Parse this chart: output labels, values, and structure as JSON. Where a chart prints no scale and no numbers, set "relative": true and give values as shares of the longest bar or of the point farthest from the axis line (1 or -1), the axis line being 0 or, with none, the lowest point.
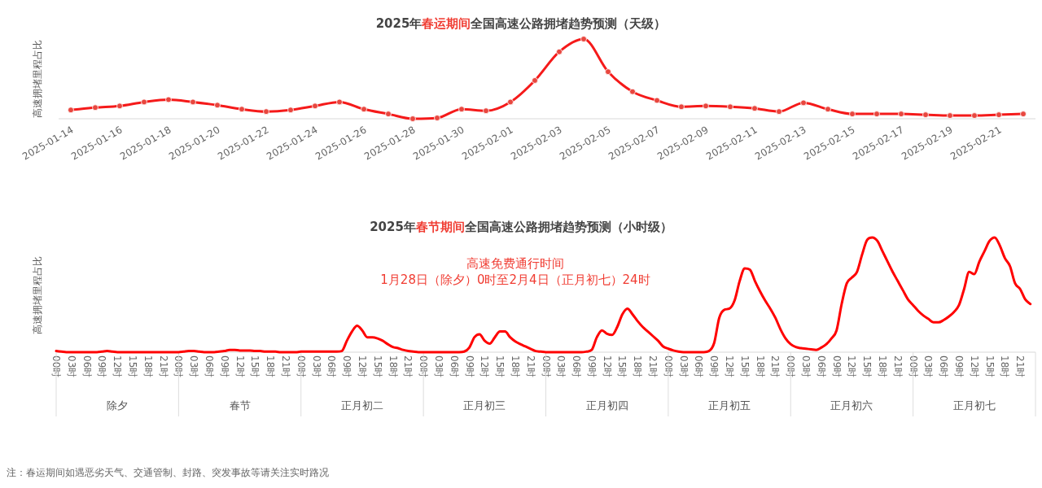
{
  "chart_data": [
    {
      "type": "line",
      "title": "2025年**春运期间**全国高速公路拥堵趋势预测（天级）",
      "ylabel": "高速拥堵里程占比",
      "relative": true,
      "marker": "circle",
      "line_style": "solid",
      "categories": [
        "2025-01-14",
        null,
        "2025-01-16",
        null,
        "2025-01-18",
        null,
        "2025-01-20",
        null,
        "2025-01-22",
        null,
        "2025-01-24",
        null,
        "2025-01-26",
        null,
        "2025-01-28",
        null,
        "2025-01-30",
        null,
        "2025-02-01",
        null,
        "2025-02-03",
        null,
        "2025-02-05",
        null,
        "2025-02-07",
        null,
        "2025-02-09",
        null,
        "2025-02-11",
        null,
        "2025-02-13",
        null,
        "2025-02-15",
        null,
        "2025-02-17",
        null,
        "2025-02-19",
        null,
        "2025-02-21",
        null
      ],
      "series": [
        {
          "color": "#f51a1a",
          "values": [
            0.11,
            0.14,
            0.16,
            0.21,
            0.24,
            0.21,
            0.17,
            0.12,
            0.09,
            0.11,
            0.16,
            0.21,
            0.12,
            0.06,
            0.0,
            0.01,
            0.12,
            0.1,
            0.21,
            0.48,
            0.84,
            1.0,
            0.59,
            0.34,
            0.23,
            0.15,
            0.16,
            0.15,
            0.13,
            0.09,
            0.2,
            0.12,
            0.06,
            0.06,
            0.06,
            0.05,
            0.04,
            0.04,
            0.05,
            0.06
          ]
        }
      ]
    },
    {
      "type": "line",
      "title": "2025年**春节期间**全国高速公路拥堵趋势预测（小时级）",
      "ylabel": "高速拥堵里程占比",
      "relative": true,
      "marker": "none",
      "line_style": "solid",
      "annotations": [
        "高速免费通行时间",
        "1月28日（除夕）0时至2月4日（正月初七）24时",
        "除夕",
        "春节",
        "正月初二",
        "正月初三",
        "正月初四",
        "正月初五",
        "正月初六",
        "正月初七",
        "注：春运期间如遇恶劣天气、交通管制、封路、突发事故等请关注实时路况"
      ],
      "categories": [
        "00时",
        null,
        null,
        "03时",
        null,
        null,
        "06时",
        null,
        null,
        "09时",
        null,
        null,
        "12时",
        null,
        null,
        "15时",
        null,
        null,
        "18时",
        null,
        null,
        "21时",
        null,
        null,
        "00时",
        null,
        null,
        "03时",
        null,
        null,
        "06时",
        null,
        null,
        "09时",
        null,
        null,
        "12时",
        null,
        null,
        "15时",
        null,
        null,
        "18时",
        null,
        null,
        "21时",
        null,
        null,
        "00时",
        null,
        null,
        "03时",
        null,
        null,
        "06时",
        null,
        null,
        "09时",
        null,
        null,
        "12时",
        null,
        null,
        "15时",
        null,
        null,
        "18时",
        null,
        null,
        "21时",
        null,
        null,
        "00时",
        null,
        null,
        "03时",
        null,
        null,
        "06时",
        null,
        null,
        "09时",
        null,
        null,
        "12时",
        null,
        null,
        "15时",
        null,
        null,
        "18时",
        null,
        null,
        "21时",
        null,
        null,
        "00时",
        null,
        null,
        "03时",
        null,
        null,
        "06时",
        null,
        null,
        "09时",
        null,
        null,
        "12时",
        null,
        null,
        "15时",
        null,
        null,
        "18时",
        null,
        null,
        "21时",
        null,
        null,
        "00时",
        null,
        null,
        "03时",
        null,
        null,
        "06时",
        null,
        null,
        "09时",
        null,
        null,
        "12时",
        null,
        null,
        "15时",
        null,
        null,
        "18时",
        null,
        null,
        "21时",
        null,
        null,
        "00时",
        null,
        null,
        "03时",
        null,
        null,
        "06时",
        null,
        null,
        "09时",
        null,
        null,
        "12时",
        null,
        null,
        "15时",
        null,
        null,
        "18时",
        null,
        null,
        "21时",
        null,
        null,
        "00时",
        null,
        null,
        "03时",
        null,
        null,
        "06时",
        null,
        null,
        "09时",
        null,
        null,
        "12时",
        null,
        null,
        "15时",
        null,
        null,
        "18时",
        null,
        null,
        "21时",
        null,
        null
      ],
      "series": [
        {
          "color": "#ff0000",
          "values": [
            0.01,
            0.005,
            0,
            0,
            0,
            0,
            0,
            0,
            0,
            0.005,
            0.01,
            0.005,
            0,
            0,
            0,
            0,
            0,
            0,
            0,
            0,
            0,
            0,
            0,
            0,
            0,
            0.005,
            0.01,
            0.01,
            0.005,
            0,
            0,
            0,
            0.005,
            0.01,
            0.02,
            0.02,
            0.015,
            0.015,
            0.015,
            0.01,
            0.01,
            0.005,
            0.005,
            0.005,
            0,
            0,
            0,
            0,
            0.005,
            0.005,
            0.005,
            0.005,
            0.005,
            0.005,
            0.005,
            0.005,
            0.01,
            0.1,
            0.18,
            0.23,
            0.19,
            0.13,
            0.13,
            0.12,
            0.1,
            0.07,
            0.045,
            0.035,
            0.02,
            0.01,
            0.005,
            0,
            0,
            0,
            0,
            0,
            0,
            0,
            0,
            0,
            0.005,
            0.04,
            0.13,
            0.156,
            0.1,
            0.074,
            0.13,
            0.18,
            0.18,
            0.13,
            0.094,
            0.07,
            0.05,
            0.03,
            0.01,
            0.005,
            0,
            0,
            0,
            0,
            0,
            0,
            0,
            0,
            0.005,
            0.02,
            0.13,
            0.19,
            0.16,
            0.15,
            0.22,
            0.33,
            0.38,
            0.33,
            0.27,
            0.22,
            0.18,
            0.14,
            0.1,
            0.05,
            0.03,
            0.015,
            0.005,
            0,
            0,
            0,
            0,
            0,
            0.01,
            0.08,
            0.3,
            0.37,
            0.38,
            0.45,
            0.62,
            0.73,
            0.72,
            0.62,
            0.53,
            0.45,
            0.38,
            0.3,
            0.2,
            0.12,
            0.07,
            0.045,
            0.035,
            0.03,
            0.025,
            0.02,
            0.04,
            0.07,
            0.12,
            0.19,
            0.42,
            0.6,
            0.65,
            0.7,
            0.85,
            0.98,
            1.0,
            0.97,
            0.88,
            0.79,
            0.7,
            0.62,
            0.54,
            0.46,
            0.41,
            0.36,
            0.32,
            0.29,
            0.26,
            0.26,
            0.28,
            0.31,
            0.35,
            0.41,
            0.55,
            0.7,
            0.68,
            0.79,
            0.88,
            0.97,
            1.0,
            0.93,
            0.82,
            0.75,
            0.6,
            0.55,
            0.46,
            0.42
          ]
        }
      ]
    }
  ]
}
